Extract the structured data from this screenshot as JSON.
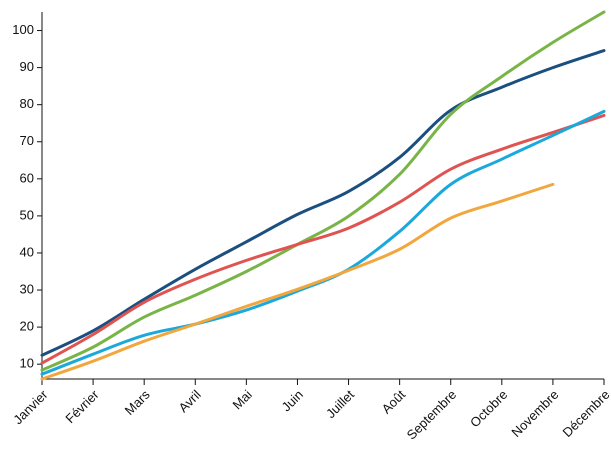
{
  "chart_data": {
    "type": "line",
    "categories": [
      "Janvier",
      "Février",
      "Mars",
      "Avril",
      "Mai",
      "Juin",
      "Juillet",
      "Août",
      "Septembre",
      "Octobre",
      "Novembre",
      "Décembre"
    ],
    "series": [
      {
        "color": "#1a4f80",
        "values": [
          12.4,
          19,
          27.5,
          35.6,
          43,
          50.4,
          56.6,
          65.8,
          78.5,
          84.7,
          90,
          94.6
        ]
      },
      {
        "color": "#79b447",
        "values": [
          8.4,
          14.6,
          22.7,
          28.6,
          35,
          42.3,
          49.9,
          61.2,
          77.4,
          87.6,
          96.8,
          105
        ]
      },
      {
        "color": "#df5450",
        "values": [
          10.3,
          18,
          26.7,
          32.9,
          38,
          42.3,
          46.7,
          53.7,
          62.6,
          68,
          72.5,
          77.1
        ]
      },
      {
        "color": "#1ba8dd",
        "values": [
          7.3,
          12.7,
          17.8,
          20.8,
          24.6,
          29.7,
          35.6,
          45.8,
          58.5,
          65.3,
          71.7,
          78.2
        ]
      },
      {
        "color": "#f1a73d",
        "values": [
          6,
          10.8,
          16.2,
          20.8,
          25.6,
          30.2,
          35.3,
          41,
          49.4,
          54,
          58.5,
          null
        ]
      }
    ],
    "ylim": [
      6,
      105
    ],
    "yticks": [
      10,
      20,
      30,
      40,
      50,
      60,
      70,
      80,
      90,
      100
    ]
  }
}
